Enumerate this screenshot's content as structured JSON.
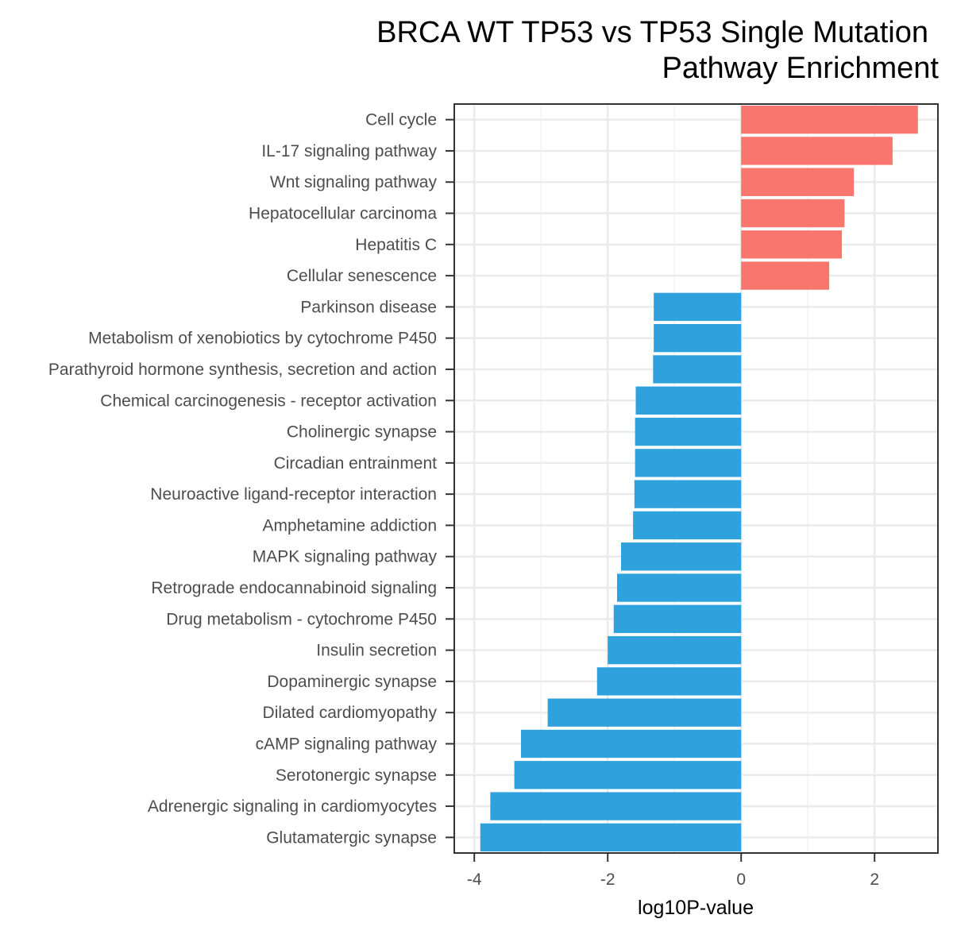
{
  "chart_data": {
    "type": "bar",
    "orientation": "horizontal",
    "title": [
      "BRCA WT TP53 vs TP53 Single Mutation",
      "Pathway Enrichment"
    ],
    "xlabel": "log10P-value",
    "ylabel": "",
    "xlim": [
      -4.3,
      2.95
    ],
    "xticks": [
      -4,
      -2,
      0,
      2
    ],
    "xtick_labels": [
      "-4",
      "-2",
      "0",
      "2"
    ],
    "grid": true,
    "colors": {
      "positive": "#F8766D",
      "negative": "#2FA1DD"
    },
    "categories": [
      "Cell cycle",
      "IL-17 signaling pathway",
      "Wnt signaling pathway",
      "Hepatocellular carcinoma",
      "Hepatitis C",
      "Cellular senescence",
      "Parkinson disease",
      "Metabolism of xenobiotics by cytochrome P450",
      "Parathyroid hormone synthesis, secretion and action",
      "Chemical carcinogenesis - receptor activation",
      "Cholinergic synapse",
      "Circadian entrainment",
      "Neuroactive ligand-receptor interaction",
      "Amphetamine addiction",
      "MAPK signaling pathway",
      "Retrograde endocannabinoid signaling",
      "Drug metabolism - cytochrome P450",
      "Insulin secretion",
      "Dopaminergic synapse",
      "Dilated cardiomyopathy",
      "cAMP signaling pathway",
      "Serotonergic synapse",
      "Adrenergic signaling in cardiomyocytes",
      "Glutamatergic synapse"
    ],
    "values": [
      2.65,
      2.27,
      1.69,
      1.55,
      1.51,
      1.32,
      -1.31,
      -1.31,
      -1.32,
      -1.58,
      -1.59,
      -1.59,
      -1.6,
      -1.62,
      -1.8,
      -1.86,
      -1.91,
      -2.0,
      -2.16,
      -2.9,
      -3.3,
      -3.4,
      -3.76,
      -3.91
    ]
  }
}
